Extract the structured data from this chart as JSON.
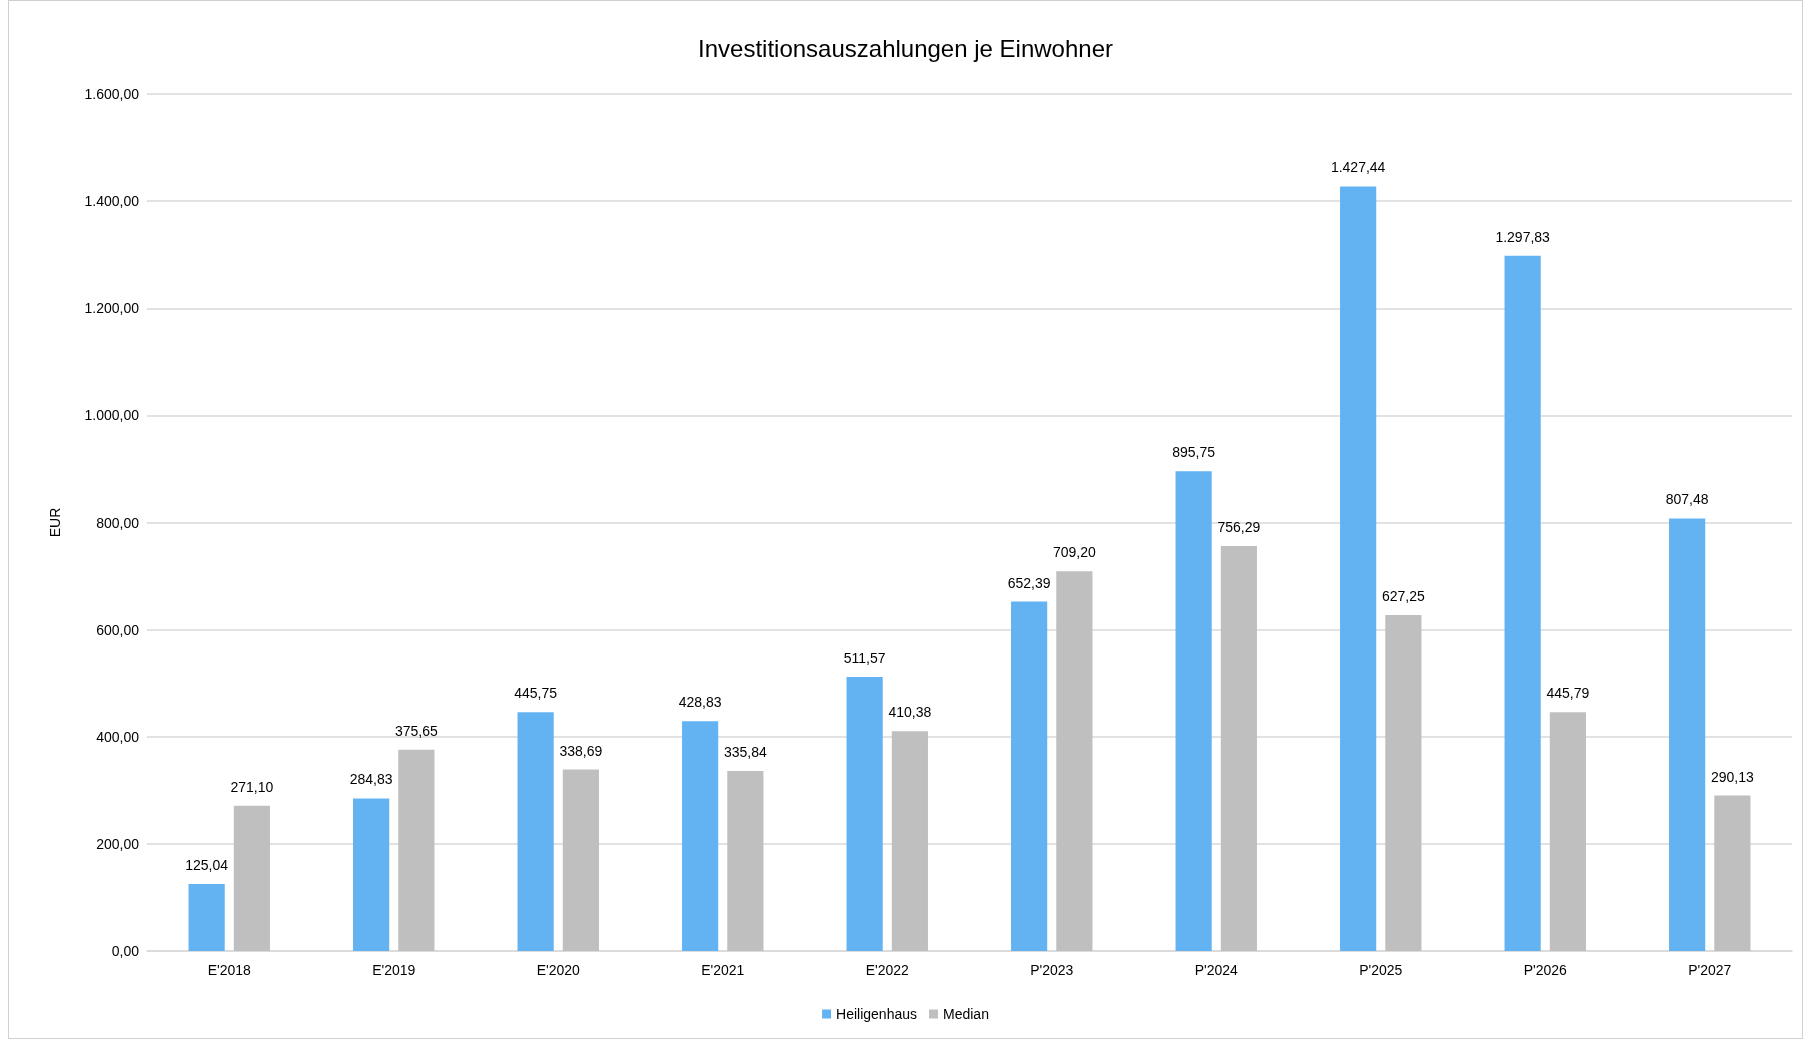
{
  "chart_data": {
    "type": "bar",
    "title": "Investitionsauszahlungen je Einwohner",
    "ylabel": "EUR",
    "categories": [
      "E'2018",
      "E'2019",
      "E'2020",
      "E'2021",
      "E'2022",
      "P'2023",
      "P'2024",
      "P'2025",
      "P'2026",
      "P'2027"
    ],
    "series": [
      {
        "name": "Heiligenhaus",
        "color": "#63b3f3",
        "values": [
          125.04,
          284.83,
          445.75,
          428.83,
          511.57,
          652.39,
          895.75,
          1427.44,
          1297.83,
          807.48
        ],
        "value_labels": [
          "125,04",
          "284,83",
          "445,75",
          "428,83",
          "511,57",
          "652,39",
          "895,75",
          "1.427,44",
          "1.297,83",
          "807,48"
        ]
      },
      {
        "name": "Median",
        "color": "#bfbfbf",
        "values": [
          271.1,
          375.65,
          338.69,
          335.84,
          410.38,
          709.2,
          756.29,
          627.25,
          445.79,
          290.13
        ],
        "value_labels": [
          "271,10",
          "375,65",
          "338,69",
          "335,84",
          "410,38",
          "709,20",
          "756,29",
          "627,25",
          "445,79",
          "290,13"
        ]
      }
    ],
    "ylim": [
      0,
      1600
    ],
    "yticks": [
      {
        "value": 0,
        "label": "0,00"
      },
      {
        "value": 200,
        "label": "200,00"
      },
      {
        "value": 400,
        "label": "400,00"
      },
      {
        "value": 600,
        "label": "600,00"
      },
      {
        "value": 800,
        "label": "800,00"
      },
      {
        "value": 1000,
        "label": "1.000,00"
      },
      {
        "value": 1200,
        "label": "1.200,00"
      },
      {
        "value": 1400,
        "label": "1.400,00"
      },
      {
        "value": 1600,
        "label": "1.600,00"
      }
    ],
    "grid": "y",
    "legend": "bottom"
  }
}
